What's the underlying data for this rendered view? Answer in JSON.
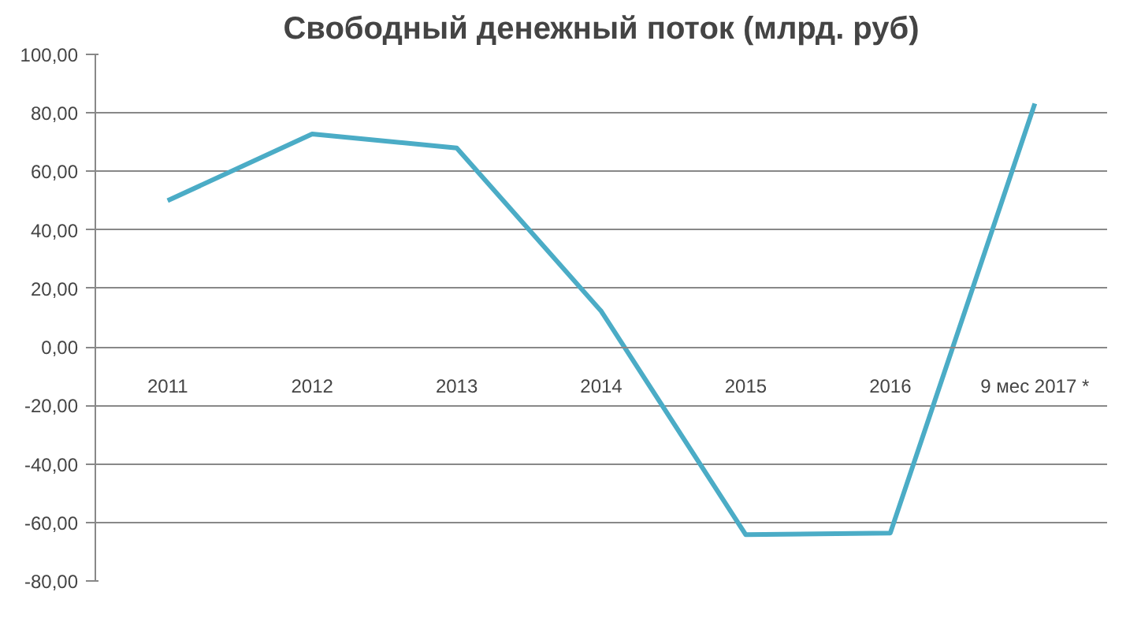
{
  "chart_data": {
    "type": "line",
    "title": "Свободный денежный поток (млрд. руб)",
    "categories": [
      "2011",
      "2012",
      "2013",
      "2014",
      "2015",
      "2016",
      "9 мес 2017 *"
    ],
    "series": [
      {
        "color": "#4bacc6",
        "values": [
          50,
          72.8,
          68,
          12.2,
          -64.2,
          -63.6,
          83.2
        ]
      }
    ],
    "ylim": [
      -80,
      100
    ],
    "yticks": [
      {
        "value": -80,
        "label": "-80,00"
      },
      {
        "value": -60,
        "label": "-60,00"
      },
      {
        "value": -40,
        "label": "-40,00"
      },
      {
        "value": -20,
        "label": "-20,00"
      },
      {
        "value": 0,
        "label": "0,00"
      },
      {
        "value": 20,
        "label": "20,00"
      },
      {
        "value": 40,
        "label": "40,00"
      },
      {
        "value": 60,
        "label": "60,00"
      },
      {
        "value": 80,
        "label": "80,00"
      },
      {
        "value": 100,
        "label": "100,00"
      }
    ],
    "grid": "y",
    "marker": "none",
    "line_style": "solid"
  }
}
